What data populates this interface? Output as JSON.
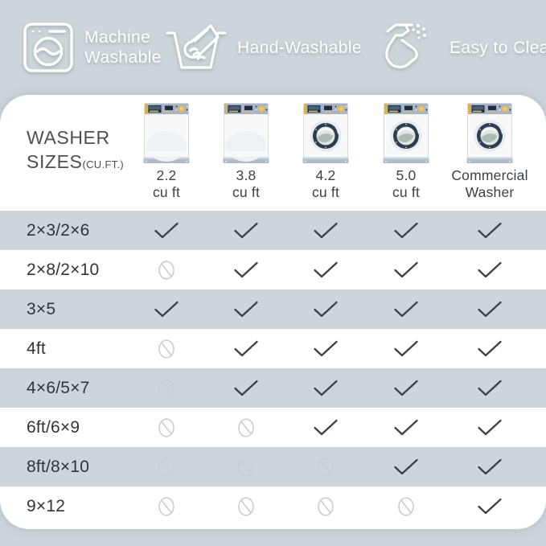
{
  "colors": {
    "background": "#ccd6da",
    "card": "#ffffff",
    "row_stripe": "#ccd6da",
    "feature_text": "#ffffff",
    "check": "#3a4147",
    "not_compatible": "#c8ced3",
    "title_text": "#4b5056",
    "label_text": "#2f353a",
    "washer_navy": "#2c3c52",
    "washer_gold": "#e3bd60",
    "washer_panel": "#a6b4c3"
  },
  "top_features": [
    {
      "icon": "washing-machine-icon",
      "lines": [
        "Machine",
        "Washable"
      ]
    },
    {
      "icon": "hand-wash-icon",
      "lines": [
        "Hand-Washable"
      ]
    },
    {
      "icon": "spray-bottle-icon",
      "lines": [
        "Easy to Clean"
      ]
    }
  ],
  "washer_table": {
    "title_line1": "WASHER",
    "title_line2": "SIZES",
    "title_unit": "(CU.FT.)",
    "columns": [
      {
        "caption_lines": [
          "2.2",
          "cu ft"
        ],
        "washer_type": "top-load"
      },
      {
        "caption_lines": [
          "3.8",
          "cu ft"
        ],
        "washer_type": "top-load"
      },
      {
        "caption_lines": [
          "4.2",
          "cu ft"
        ],
        "washer_type": "front-load"
      },
      {
        "caption_lines": [
          "5.0",
          "cu ft"
        ],
        "washer_type": "front-load"
      },
      {
        "caption_lines": [
          "Commercial",
          "Washer"
        ],
        "washer_type": "front-load"
      }
    ],
    "rows": [
      {
        "label": "2×3/2×6",
        "cells": [
          "yes",
          "yes",
          "yes",
          "yes",
          "yes"
        ]
      },
      {
        "label": "2×8/2×10",
        "cells": [
          "no",
          "yes",
          "yes",
          "yes",
          "yes"
        ]
      },
      {
        "label": "3×5",
        "cells": [
          "yes",
          "yes",
          "yes",
          "yes",
          "yes"
        ]
      },
      {
        "label": "4ft",
        "cells": [
          "no",
          "yes",
          "yes",
          "yes",
          "yes"
        ]
      },
      {
        "label": "4×6/5×7",
        "cells": [
          "no",
          "yes",
          "yes",
          "yes",
          "yes"
        ]
      },
      {
        "label": "6ft/6×9",
        "cells": [
          "no",
          "no",
          "yes",
          "yes",
          "yes"
        ]
      },
      {
        "label": "8ft/8×10",
        "cells": [
          "no",
          "no",
          "no",
          "yes",
          "yes"
        ]
      },
      {
        "label": "9×12",
        "cells": [
          "no",
          "no",
          "no",
          "no",
          "yes"
        ]
      }
    ]
  }
}
